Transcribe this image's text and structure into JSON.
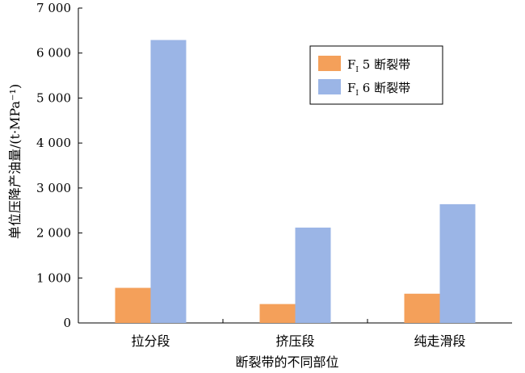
{
  "chart_data": {
    "type": "bar",
    "xlabel": "断裂带的不同部位",
    "ylabel": "单位压降产油量/(t·MPa⁻¹)",
    "categories": [
      "拉分段",
      "挤压段",
      "纯走滑段"
    ],
    "ylim": [
      0,
      7000
    ],
    "yticks": [
      0,
      1000,
      2000,
      3000,
      4000,
      5000,
      6000,
      7000
    ],
    "ytick_labels": [
      "0",
      "1 000",
      "2 000",
      "3 000",
      "4 000",
      "5 000",
      "6 000",
      "7 000"
    ],
    "grid": false,
    "legend_position": "top-right",
    "series": [
      {
        "name": "F",
        "name_subscript": "I",
        "name_suffix": " 5 断裂带",
        "color": "#F4A05A",
        "values": [
          780,
          420,
          650
        ]
      },
      {
        "name": "F",
        "name_subscript": "I",
        "name_suffix": " 6 断裂带",
        "color": "#9BB5E6",
        "values": [
          6290,
          2120,
          2640
        ]
      }
    ]
  }
}
